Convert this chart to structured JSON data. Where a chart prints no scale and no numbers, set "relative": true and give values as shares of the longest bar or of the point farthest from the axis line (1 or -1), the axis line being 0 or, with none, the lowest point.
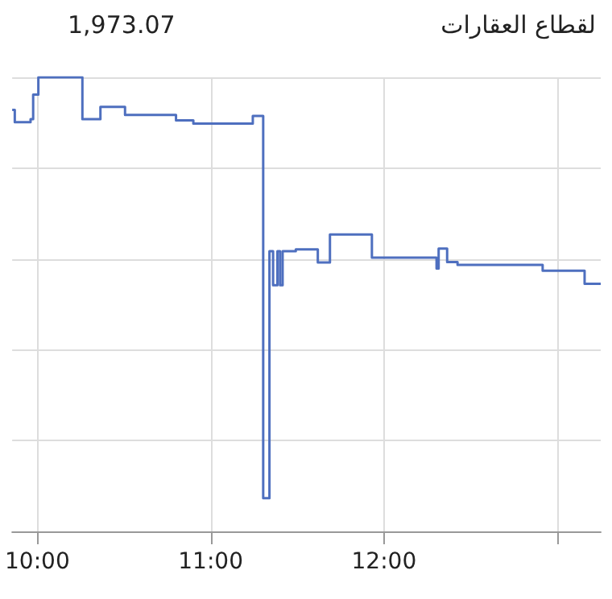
{
  "chart_data": {
    "type": "step",
    "title": "لقطاع العقارات",
    "annotations": [
      "1,973.07"
    ],
    "relative": true,
    "xlim": [
      9.855,
      13.25
    ],
    "xticks": [
      {
        "value": 10,
        "label": "10:00"
      },
      {
        "value": 11,
        "label": "11:00"
      },
      {
        "value": 12,
        "label": "12:00"
      },
      {
        "value": 13,
        "label": null
      }
    ],
    "x": [
      9.855,
      9.87,
      9.961,
      9.976,
      10.006,
      10.26,
      10.364,
      10.506,
      10.8,
      10.9,
      11.243,
      11.303,
      11.339,
      11.36,
      11.385,
      11.4,
      11.415,
      11.491,
      11.618,
      11.688,
      11.93,
      12.303,
      12.315,
      12.364,
      12.424,
      12.915,
      13.157,
      13.25
    ],
    "series": [
      {
        "color": "#4e6fbf",
        "values": [
          0.928,
          0.901,
          0.908,
          0.962,
          1.0,
          0.908,
          0.935,
          0.917,
          0.905,
          0.898,
          0.915,
          0.073,
          0.617,
          0.542,
          0.617,
          0.542,
          0.617,
          0.621,
          0.592,
          0.654,
          0.603,
          0.579,
          0.623,
          0.593,
          0.587,
          0.574,
          0.545,
          0.545
        ]
      }
    ],
    "grid": true,
    "marker": "none",
    "line_style": "solid"
  }
}
